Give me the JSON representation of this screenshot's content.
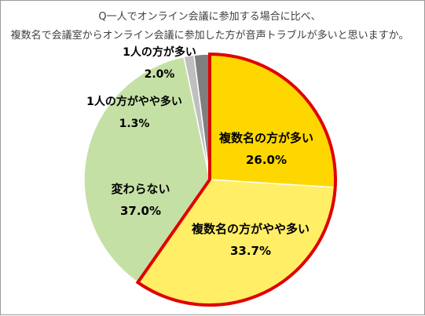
{
  "chart_data": {
    "type": "pie",
    "title": [
      "Q一人でオンライン会議に参加する場合に比べ、",
      "複数名で会議室からオンライン会議に参加した方が音声トラブルが多いと思いますか。"
    ],
    "slices": [
      {
        "label": "複数名の方が多い",
        "value": 26.0,
        "value_label": "26.0%",
        "color": "#FFD700",
        "highlight": true
      },
      {
        "label": "複数名の方がやや多い",
        "value": 33.7,
        "value_label": "33.7%",
        "color": "#FFEE66",
        "highlight": true
      },
      {
        "label": "変わらない",
        "value": 37.0,
        "value_label": "37.0%",
        "color": "#C5E0A5",
        "highlight": false
      },
      {
        "label": "1人の方がやや多い",
        "value": 1.3,
        "value_label": "1.3%",
        "color": "#BFBFBF",
        "highlight": false
      },
      {
        "label": "1人の方が多い",
        "value": 2.0,
        "value_label": "2.0%",
        "color": "#7F7F7F",
        "highlight": false
      }
    ],
    "start_angle_deg": 0,
    "direction": "clockwise",
    "highlight_outline_color": "#E00000",
    "legend": "none"
  }
}
